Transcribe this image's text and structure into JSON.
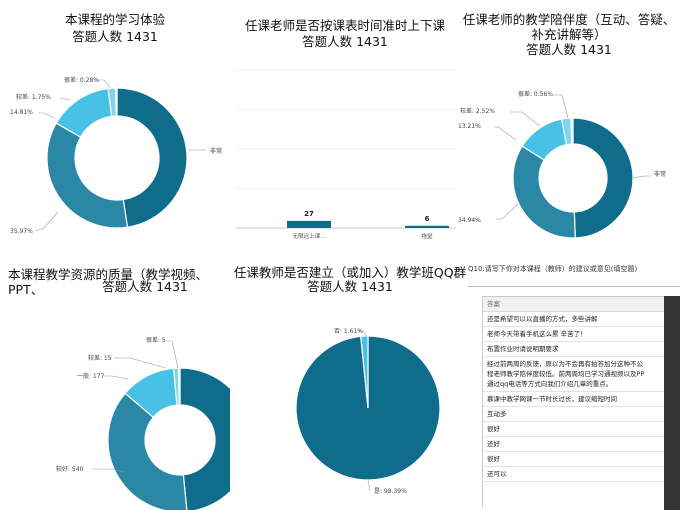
{
  "chart_data": [
    {
      "type": "pie",
      "title": "本课程的学习体验",
      "subtitle": "答题人数 1431",
      "slices": [
        {
          "name": "非常",
          "value": 48.0
        },
        {
          "name": "",
          "value": 35.97
        },
        {
          "name": "",
          "value": 14.81
        },
        {
          "name": "较差",
          "value": 1.75
        },
        {
          "name": "很差",
          "value": 0.28
        }
      ],
      "labels": [
        "非常",
        "35.97%",
        "14.81%",
        "较差: 1.75%",
        "很差: 0.28%"
      ],
      "colors": [
        "#0f6c8b",
        "#2b87a6",
        "#47c1e5",
        "#7fd6ee",
        "#cfeef8"
      ]
    },
    {
      "type": "bar",
      "title": "任课老师是否按课表时间准时上下课",
      "subtitle": "答题人数 1431",
      "categories": [
        "无限迟上课...",
        "拖堂"
      ],
      "values": [
        27,
        6
      ],
      "ylim": [
        0,
        600
      ],
      "colors": [
        "#0f6c8b",
        "#0f6c8b"
      ]
    },
    {
      "type": "pie",
      "title": "任课老师的教学陪伴度（互动、答疑、",
      "title2": "补充讲解等）",
      "subtitle": "答题人数 1431",
      "slices": [
        {
          "name": "非常",
          "value": 50.0
        },
        {
          "name": "",
          "value": 34.94
        },
        {
          "name": "",
          "value": 13.21
        },
        {
          "name": "较差",
          "value": 2.52
        },
        {
          "name": "很差",
          "value": 0.56
        }
      ],
      "labels": [
        "非常",
        "34.94%",
        "13.21%",
        "较差: 2.52%",
        "很差: 0.56%"
      ],
      "colors": [
        "#0f6c8b",
        "#2b87a6",
        "#47c1e5",
        "#7fd6ee",
        "#cfeef8"
      ]
    },
    {
      "type": "pie",
      "title": "本课程教学资源的质量（教学视频、PPT、",
      "subtitle": "答题人数 1431",
      "slices": [
        {
          "name": "",
          "value": 693
        },
        {
          "name": "较好",
          "value": 540
        },
        {
          "name": "一般",
          "value": 177
        },
        {
          "name": "较差",
          "value": 15
        },
        {
          "name": "很差",
          "value": 5
        }
      ],
      "labels": [
        "较好: 540",
        "一般: 177",
        "较差: 15",
        "很差: 5"
      ],
      "colors": [
        "#0f6c8b",
        "#2b87a6",
        "#47c1e5",
        "#7fd6ee",
        "#cfeef8"
      ]
    },
    {
      "type": "pie",
      "title": "任课教师是否建立（或加入）教学班QQ群",
      "subtitle": "答题人数 1431",
      "slices": [
        {
          "name": "是",
          "value": 98.39
        },
        {
          "name": "否",
          "value": 1.61
        }
      ],
      "labels": [
        "是: 98.39%",
        "否: 1.61%"
      ],
      "colors": [
        "#0f6c8b",
        "#47c1e5"
      ]
    }
  ],
  "open_question": {
    "title": "Q10:请写下你对本课程（教师）的建议或意见(填空题)",
    "header": "答案",
    "answers": [
      "还是希望可以以直播的方式，多些讲解",
      "老师今天带着手机这么累 辛苦了！",
      "布置作业时请说明期要求",
      "经过前两周的反馈，原以为不会再有拍答加分这种不公\n程老师教学陪伴度较低。前两周均已学习通视频以及PP\n通过qq电话等方式向我们介绍几章的重点。",
      "慕课中教学网课一节时长过长，建议缩短时间",
      "互动多",
      "很好",
      "还好",
      "很好",
      "还可以"
    ]
  }
}
